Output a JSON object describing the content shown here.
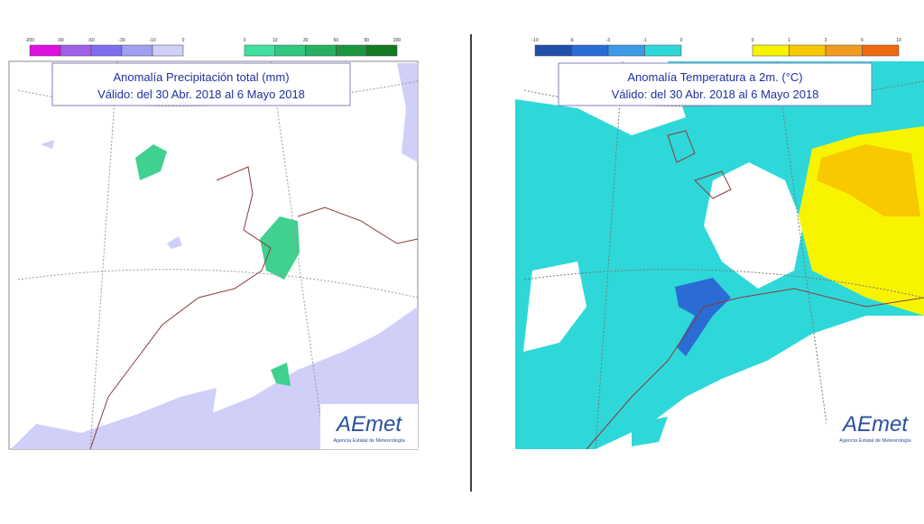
{
  "panels": [
    {
      "title": "Anomalía Precipitación total (mm)",
      "subtitle": "Válido: del 30 Abr. 2018 al 6 Mayo 2018",
      "legend_negative": {
        "labels": [
          "-200",
          "-90",
          "-60",
          "-30",
          "-10",
          "0"
        ],
        "colors": [
          "#e010e0",
          "#a060e8",
          "#7f6ff0",
          "#a0a0f2",
          "#cfcff8"
        ]
      },
      "legend_positive": {
        "labels": [
          "0",
          "10",
          "30",
          "60",
          "90",
          "200"
        ],
        "colors": [
          "#40e0a0",
          "#30c880",
          "#28b060",
          "#1e9640",
          "#147a22"
        ]
      },
      "logo": "AEmet",
      "logo_caption": "Agencia Estatal de Meteorología"
    },
    {
      "title": "Anomalía Temperatura a 2m. (°C)",
      "subtitle": "Válido: del 30 Abr. 2018 al 6 Mayo 2018",
      "legend_negative": {
        "labels": [
          "-10",
          "-6",
          "-3",
          "-1",
          "0"
        ],
        "colors": [
          "#1f4fa8",
          "#2a6cd4",
          "#3c9ae6",
          "#2fd8d8"
        ]
      },
      "legend_positive": {
        "labels": [
          "0",
          "1",
          "3",
          "6",
          "10"
        ],
        "colors": [
          "#f8f400",
          "#f8c800",
          "#f09c20",
          "#ee6a10"
        ]
      },
      "logo": "AEmet",
      "logo_caption": "Agencia Estatal de Meteorología"
    }
  ]
}
